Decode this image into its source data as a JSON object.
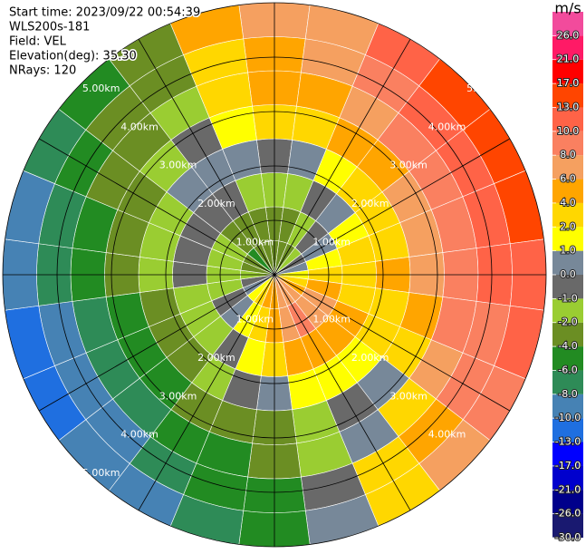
{
  "chart_data": {
    "type": "ppi",
    "annotations": [
      "Start time: 2023/09/22 00:54:39",
      "WLS200s-181",
      "Field: VEL",
      "Elevation(deg): 35.30",
      "NRays: 120"
    ],
    "azimuths": [
      0,
      15,
      30,
      45,
      60,
      75,
      90,
      105,
      120,
      135,
      150,
      165,
      180,
      195,
      210,
      225,
      240,
      255,
      270,
      285,
      300,
      315,
      330,
      345
    ],
    "range_edges": [
      0,
      0.625,
      1.25,
      1.875,
      2.5,
      3.125,
      3.75,
      4.375,
      5
    ],
    "velocity": [
      [
        -4,
        -4,
        -2,
        -1,
        2,
        4,
        4,
        6
      ],
      [
        -4,
        -4,
        -2,
        0,
        2,
        4,
        6,
        6
      ],
      [
        -4,
        -2,
        -1,
        1,
        4,
        6,
        8,
        10
      ],
      [
        -2,
        -1,
        0,
        2,
        4,
        8,
        10,
        13
      ],
      [
        -1,
        0,
        1,
        2,
        6,
        8,
        10,
        13
      ],
      [
        0,
        1,
        2,
        2,
        6,
        8,
        10,
        13
      ],
      [
        1,
        2,
        2,
        4,
        6,
        8,
        10,
        10
      ],
      [
        2,
        4,
        2,
        2,
        4,
        8,
        8,
        10
      ],
      [
        4,
        6,
        4,
        2,
        2,
        6,
        8,
        8
      ],
      [
        6,
        6,
        4,
        1,
        0,
        2,
        4,
        6
      ],
      [
        6,
        8,
        4,
        1,
        -1,
        0,
        2,
        2
      ],
      [
        6,
        6,
        4,
        1,
        -2,
        -2,
        -1,
        0
      ],
      [
        4,
        4,
        2,
        0,
        -4,
        -4,
        -6,
        -6
      ],
      [
        4,
        2,
        1,
        -1,
        -4,
        -6,
        -6,
        -8
      ],
      [
        2,
        1,
        -1,
        -2,
        -4,
        -6,
        -8,
        -10
      ],
      [
        1,
        0,
        -2,
        -4,
        -6,
        -8,
        -10,
        -10
      ],
      [
        0,
        -1,
        -2,
        -4,
        -6,
        -8,
        -10,
        -13
      ],
      [
        -1,
        -2,
        -2,
        -4,
        -6,
        -8,
        -10,
        -13
      ],
      [
        -2,
        -2,
        -1,
        -2,
        -4,
        -6,
        -8,
        -10
      ],
      [
        -4,
        -2,
        -1,
        -2,
        -4,
        -6,
        -8,
        -10
      ],
      [
        -4,
        -2,
        -1,
        -2,
        -4,
        -4,
        -6,
        -8
      ],
      [
        -6,
        -4,
        -1,
        0,
        -2,
        -4,
        -4,
        -6
      ],
      [
        -4,
        -4,
        -1,
        0,
        -1,
        -2,
        -4,
        -4
      ],
      [
        -4,
        -4,
        -2,
        0,
        1,
        2,
        2,
        4
      ]
    ],
    "rlim": [
      0,
      5
    ],
    "rticks": [
      {
        "value": 1,
        "label": "1.00km"
      },
      {
        "value": 2,
        "label": "2.00km"
      },
      {
        "value": 3,
        "label": "3.00km"
      },
      {
        "value": 4,
        "label": "4.00km"
      },
      {
        "value": 5,
        "label": "5.00km"
      }
    ],
    "spoke_angles": [
      0,
      30,
      60,
      90,
      120,
      150
    ],
    "colorbar": {
      "label": "m/s",
      "bounds": [
        -30,
        -26,
        -21,
        -17,
        -13,
        -10,
        -8,
        -6,
        -4,
        -2,
        -1,
        0,
        1,
        2,
        4,
        6,
        8,
        10,
        13,
        17,
        21,
        26,
        30
      ],
      "colors": [
        "#191970",
        "#00008b",
        "#0000cd",
        "#0000ff",
        "#1f6fe0",
        "#4682b4",
        "#2e8b57",
        "#228b22",
        "#6b8e23",
        "#9acd32",
        "#696969",
        "#778899",
        "#ffff00",
        "#ffd700",
        "#ffa500",
        "#f5a060",
        "#fa8060",
        "#ff6347",
        "#ff4500",
        "#ff0000",
        "#ff1a66",
        "#f24b9c"
      ],
      "ticks": [
        {
          "value": 26,
          "label": "26.0"
        },
        {
          "value": 21,
          "label": "21.0"
        },
        {
          "value": 17,
          "label": "17.0"
        },
        {
          "value": 13,
          "label": "13.0"
        },
        {
          "value": 10,
          "label": "10.0"
        },
        {
          "value": 8,
          "label": "8.0"
        },
        {
          "value": 6,
          "label": "6.0"
        },
        {
          "value": 4,
          "label": "4.0"
        },
        {
          "value": 2,
          "label": "2.0"
        },
        {
          "value": 1,
          "label": "1.0"
        },
        {
          "value": 0,
          "label": "0.0"
        },
        {
          "value": -1,
          "label": "-1.0"
        },
        {
          "value": -2,
          "label": "-2.0"
        },
        {
          "value": -4,
          "label": "-4.0"
        },
        {
          "value": -6,
          "label": "-6.0"
        },
        {
          "value": -8,
          "label": "-8.0"
        },
        {
          "value": -10,
          "label": "-10.0"
        },
        {
          "value": -13,
          "label": "-13.0"
        },
        {
          "value": -17,
          "label": "-17.0"
        },
        {
          "value": -21,
          "label": "-21.0"
        },
        {
          "value": -26,
          "label": "-26.0"
        },
        {
          "value": -30,
          "label": "-30.0"
        }
      ]
    }
  }
}
